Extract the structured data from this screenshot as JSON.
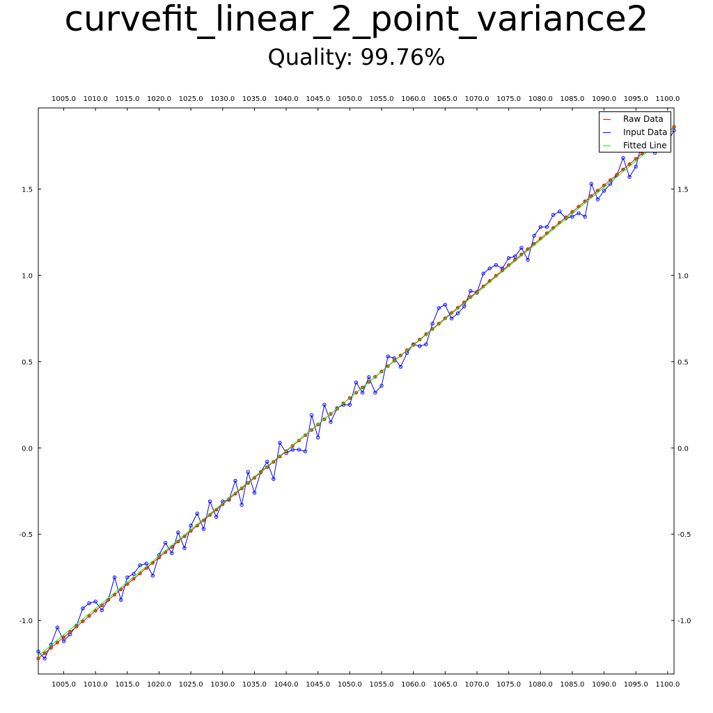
{
  "title": "curvefit_linear_2_point_variance2",
  "subtitle": "Quality: 99.76%",
  "chart_data": {
    "type": "line",
    "title": "curvefit_linear_2_point_variance2",
    "subtitle": "Quality: 99.76%",
    "xlabel": "",
    "ylabel": "",
    "xlim": [
      1001,
      1101
    ],
    "ylim": [
      -1.31,
      1.97
    ],
    "x_ticks": [
      1005,
      1010,
      1015,
      1020,
      1025,
      1030,
      1035,
      1040,
      1045,
      1050,
      1055,
      1060,
      1065,
      1070,
      1075,
      1080,
      1085,
      1090,
      1095,
      1100
    ],
    "x_tick_labels": [
      "1005.0",
      "1010.0",
      "1015.0",
      "1020.0",
      "1025.0",
      "1030.0",
      "1035.0",
      "1040.0",
      "1045.0",
      "1050.0",
      "1055.0",
      "1060.0",
      "1065.0",
      "1070.0",
      "1075.0",
      "1080.0",
      "1085.0",
      "1090.0",
      "1095.0",
      "1100.0"
    ],
    "y_ticks": [
      -1.0,
      -0.5,
      0.0,
      0.5,
      1.0,
      1.5
    ],
    "y_tick_labels": [
      "-1.0",
      "-0.5",
      "0.0",
      "0.5",
      "1.0",
      "1.5"
    ],
    "grid": false,
    "legend_position": "top-right",
    "legend": [
      {
        "name": "Raw Data",
        "color": "#ff0000"
      },
      {
        "name": "Input Data",
        "color": "#0000ff"
      },
      {
        "name": "Fitted Line",
        "color": "#00ff00"
      }
    ],
    "raw_data": {
      "name": "Raw Data",
      "color": "#ff0000",
      "x_start": 1001,
      "x_end": 1101,
      "y_start": -1.22,
      "y_end": 1.86,
      "marker_fill": "#808000"
    },
    "fitted_line": {
      "name": "Fitted Line",
      "color": "#00ff00",
      "x_start": 1001,
      "x_end": 1101,
      "y_start": -1.205,
      "y_end": 1.845
    },
    "input_data": {
      "name": "Input Data",
      "color": "#0000ff",
      "x_start": 1001,
      "x_step": 1,
      "y": [
        -1.18,
        -1.22,
        -1.14,
        -1.04,
        -1.12,
        -1.08,
        -1.03,
        -0.93,
        -0.9,
        -0.89,
        -0.94,
        -0.88,
        -0.75,
        -0.88,
        -0.75,
        -0.73,
        -0.68,
        -0.67,
        -0.74,
        -0.62,
        -0.55,
        -0.61,
        -0.49,
        -0.58,
        -0.45,
        -0.38,
        -0.47,
        -0.31,
        -0.4,
        -0.31,
        -0.3,
        -0.19,
        -0.33,
        -0.14,
        -0.26,
        -0.14,
        -0.08,
        -0.18,
        0.03,
        -0.03,
        -0.01,
        -0.01,
        -0.02,
        0.19,
        0.06,
        0.25,
        0.15,
        0.23,
        0.25,
        0.25,
        0.38,
        0.32,
        0.41,
        0.32,
        0.36,
        0.53,
        0.52,
        0.47,
        0.55,
        0.6,
        0.59,
        0.6,
        0.72,
        0.81,
        0.83,
        0.75,
        0.78,
        0.82,
        0.91,
        0.9,
        1.01,
        1.04,
        1.06,
        1.04,
        1.1,
        1.11,
        1.16,
        1.09,
        1.23,
        1.28,
        1.28,
        1.35,
        1.37,
        1.33,
        1.34,
        1.36,
        1.34,
        1.53,
        1.44,
        1.49,
        1.53,
        1.58,
        1.68,
        1.57,
        1.63,
        1.77,
        1.73,
        1.71,
        1.74,
        1.77,
        1.84
      ]
    }
  }
}
